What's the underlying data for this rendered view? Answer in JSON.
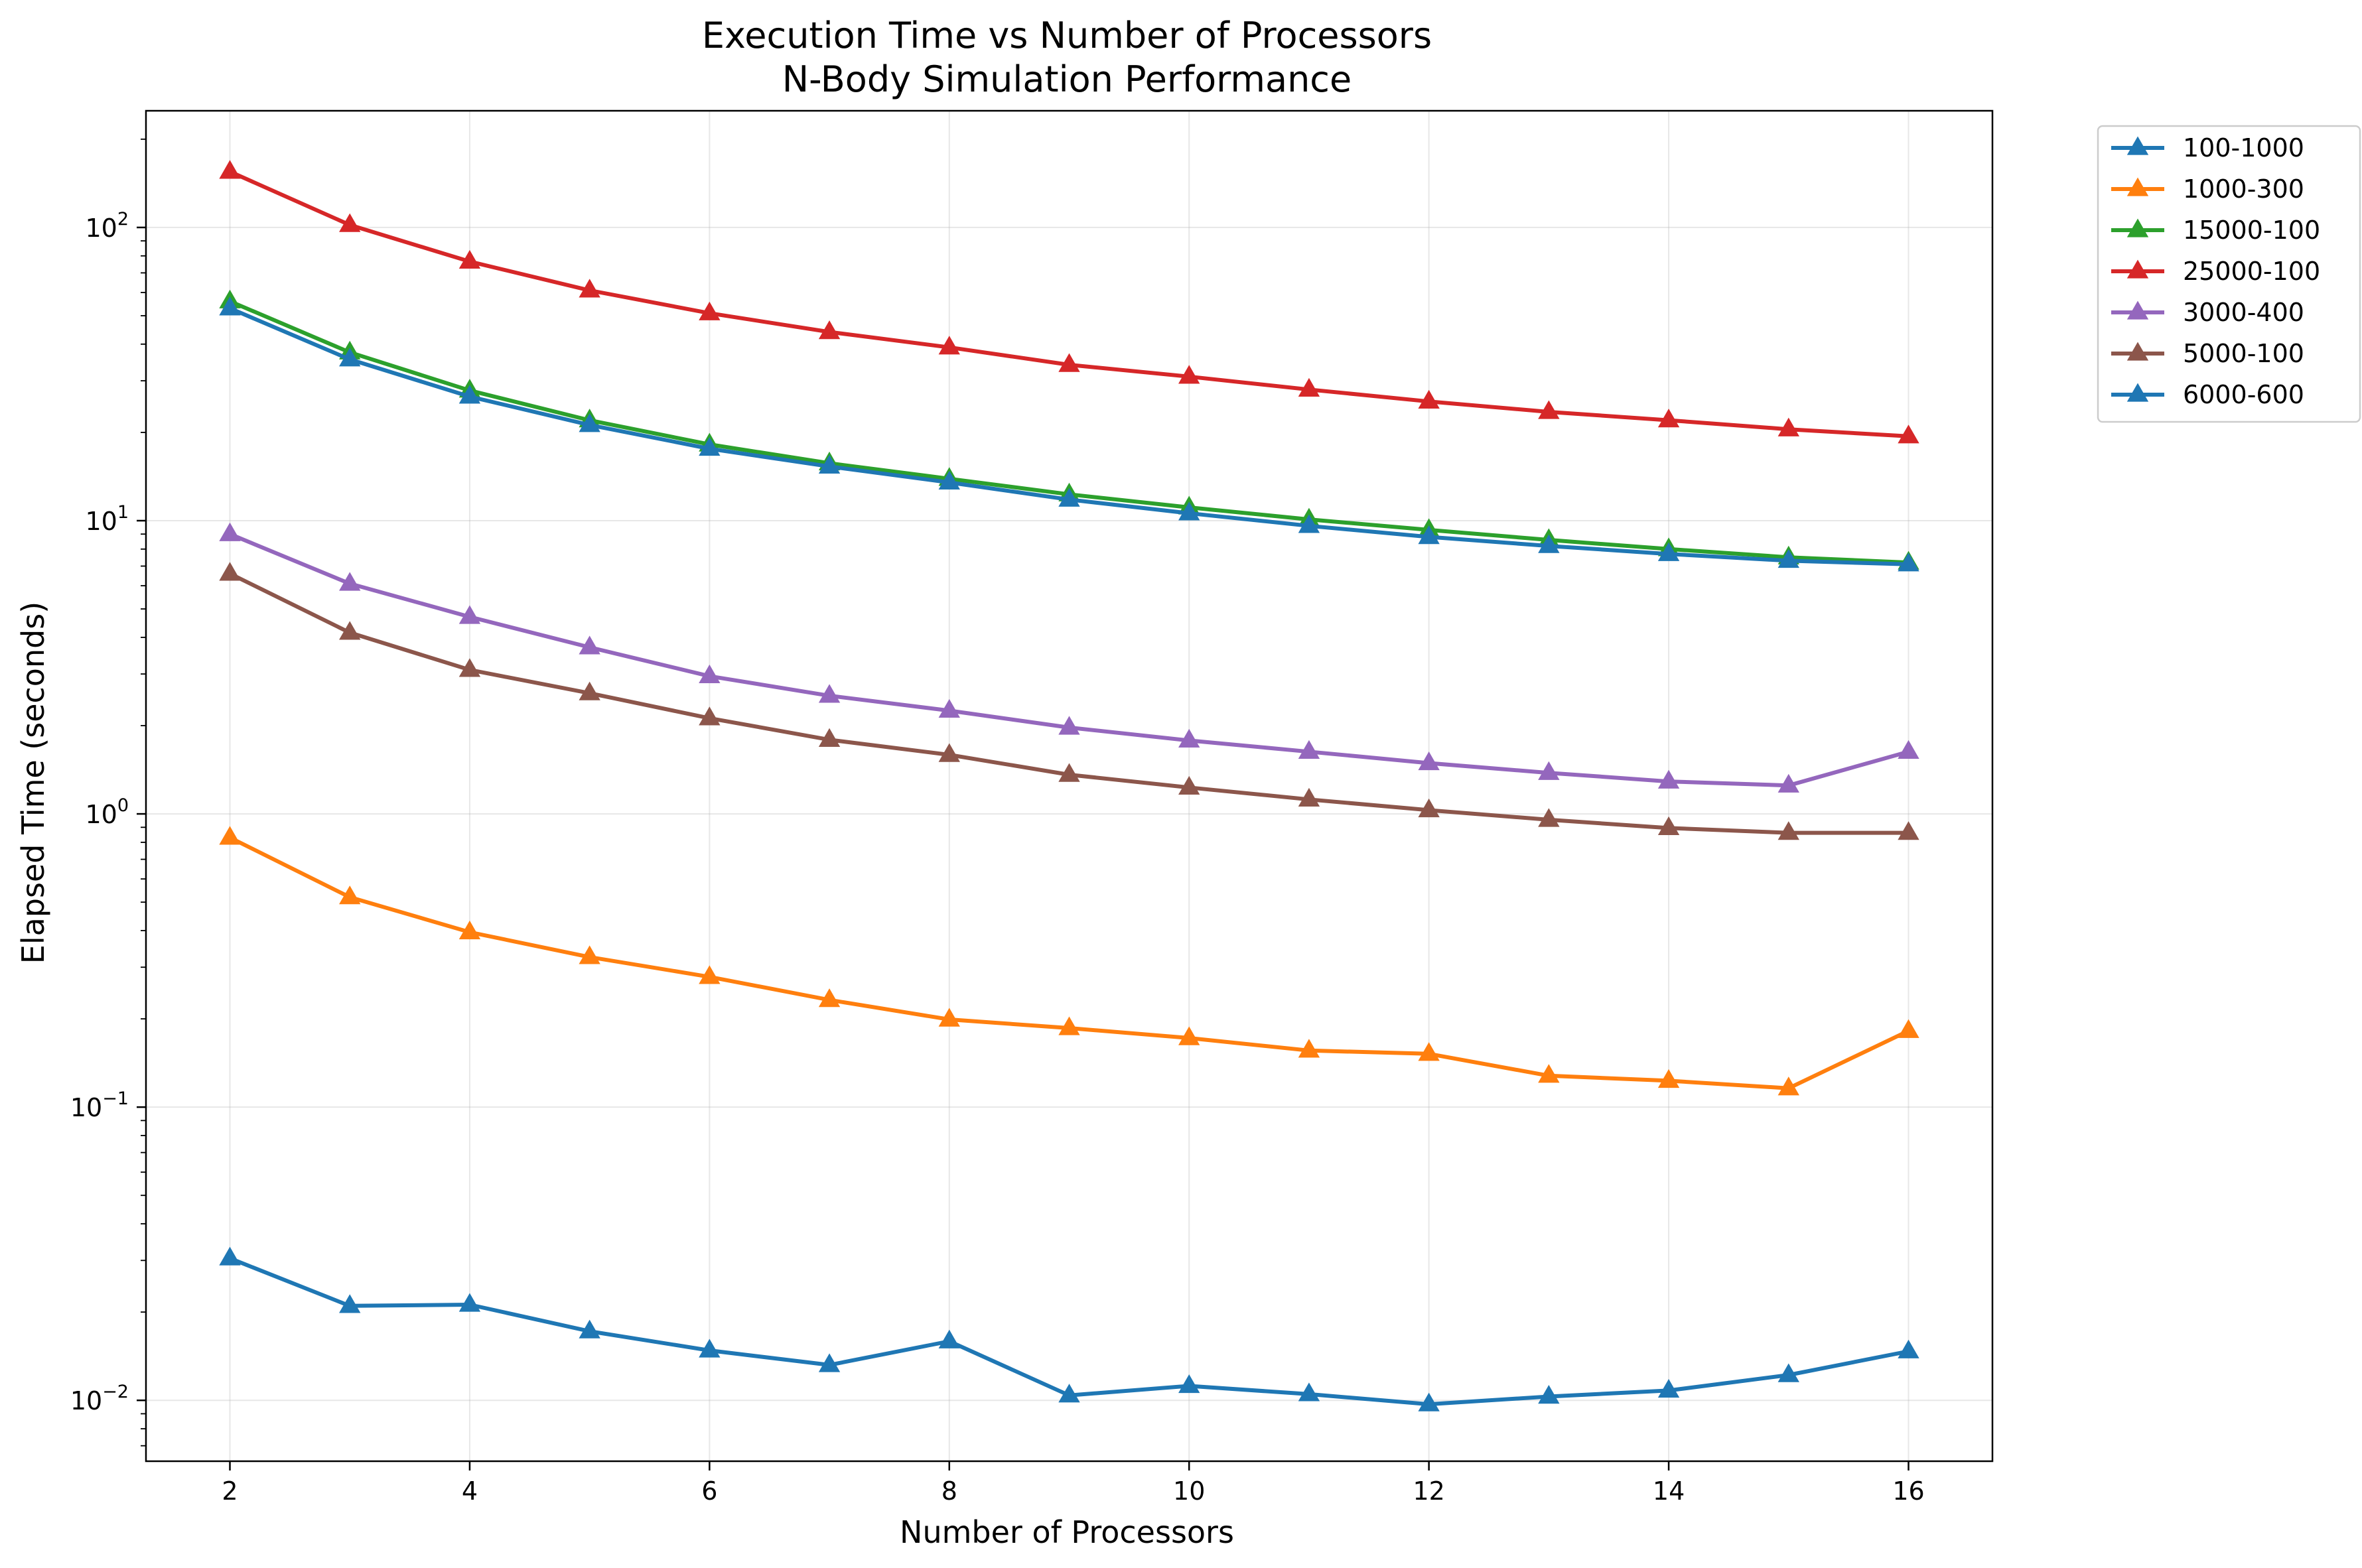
{
  "chart_data": {
    "type": "line",
    "title": "Execution Time vs Number of Processors",
    "subtitle": "N-Body Simulation Performance",
    "xlabel": "Number of Processors",
    "ylabel": "Elapsed Time (seconds)",
    "xlim": [
      1.3,
      16.7
    ],
    "ylim": [
      0.0062,
      250
    ],
    "yscale": "log",
    "grid": true,
    "legend_placement": "outside-top-right",
    "marker": "triangle-up",
    "x": [
      2,
      3,
      4,
      5,
      6,
      7,
      8,
      9,
      10,
      11,
      12,
      13,
      14,
      15,
      16
    ],
    "x_ticks": [
      {
        "value": 2,
        "label": "2"
      },
      {
        "value": 4,
        "label": "4"
      },
      {
        "value": 6,
        "label": "6"
      },
      {
        "value": 8,
        "label": "8"
      },
      {
        "value": 10,
        "label": "10"
      },
      {
        "value": 12,
        "label": "12"
      },
      {
        "value": 14,
        "label": "14"
      },
      {
        "value": 16,
        "label": "16"
      }
    ],
    "y_ticks": [
      {
        "value": 0.01,
        "base": "10",
        "exp": "−2"
      },
      {
        "value": 0.1,
        "base": "10",
        "exp": "−1"
      },
      {
        "value": 1,
        "base": "10",
        "exp": "0"
      },
      {
        "value": 10,
        "base": "10",
        "exp": "1"
      },
      {
        "value": 100,
        "base": "10",
        "exp": "2"
      }
    ],
    "series": [
      {
        "name": "100-1000",
        "color": "#1f77b4",
        "values": [
          0.0305,
          0.021,
          0.0212,
          0.0172,
          0.0148,
          0.0132,
          0.0159,
          0.0104,
          0.0112,
          0.0105,
          0.0097,
          0.0103,
          0.0108,
          0.0122,
          0.0147
        ]
      },
      {
        "name": "1000-300",
        "color": "#ff7f0e",
        "values": [
          0.83,
          0.52,
          0.395,
          0.325,
          0.278,
          0.232,
          0.199,
          0.186,
          0.172,
          0.156,
          0.152,
          0.128,
          0.123,
          0.116,
          0.182
        ]
      },
      {
        "name": "15000-100",
        "color": "#2ca02c",
        "values": [
          56,
          37.5,
          27.8,
          22,
          18.2,
          15.7,
          13.9,
          12.3,
          11.1,
          10.1,
          9.3,
          8.6,
          8.0,
          7.5,
          7.2
        ]
      },
      {
        "name": "25000-100",
        "color": "#d62728",
        "values": [
          155,
          102,
          76.5,
          61,
          51,
          44,
          39,
          34,
          31,
          28,
          25.5,
          23.5,
          22,
          20.5,
          19.4
        ]
      },
      {
        "name": "3000-400",
        "color": "#9467bd",
        "values": [
          9.0,
          6.1,
          4.7,
          3.7,
          2.95,
          2.53,
          2.25,
          1.97,
          1.78,
          1.63,
          1.49,
          1.38,
          1.29,
          1.25,
          1.63
        ]
      },
      {
        "name": "5000-100",
        "color": "#8c564b",
        "values": [
          6.6,
          4.15,
          3.1,
          2.58,
          2.12,
          1.79,
          1.59,
          1.36,
          1.23,
          1.12,
          1.03,
          0.955,
          0.895,
          0.862,
          0.862
        ]
      },
      {
        "name": "6000-600",
        "color": "#1f77b4",
        "values": [
          53,
          35.5,
          26.5,
          21.2,
          17.6,
          15.3,
          13.5,
          11.8,
          10.6,
          9.6,
          8.8,
          8.2,
          7.7,
          7.3,
          7.1
        ]
      }
    ]
  }
}
